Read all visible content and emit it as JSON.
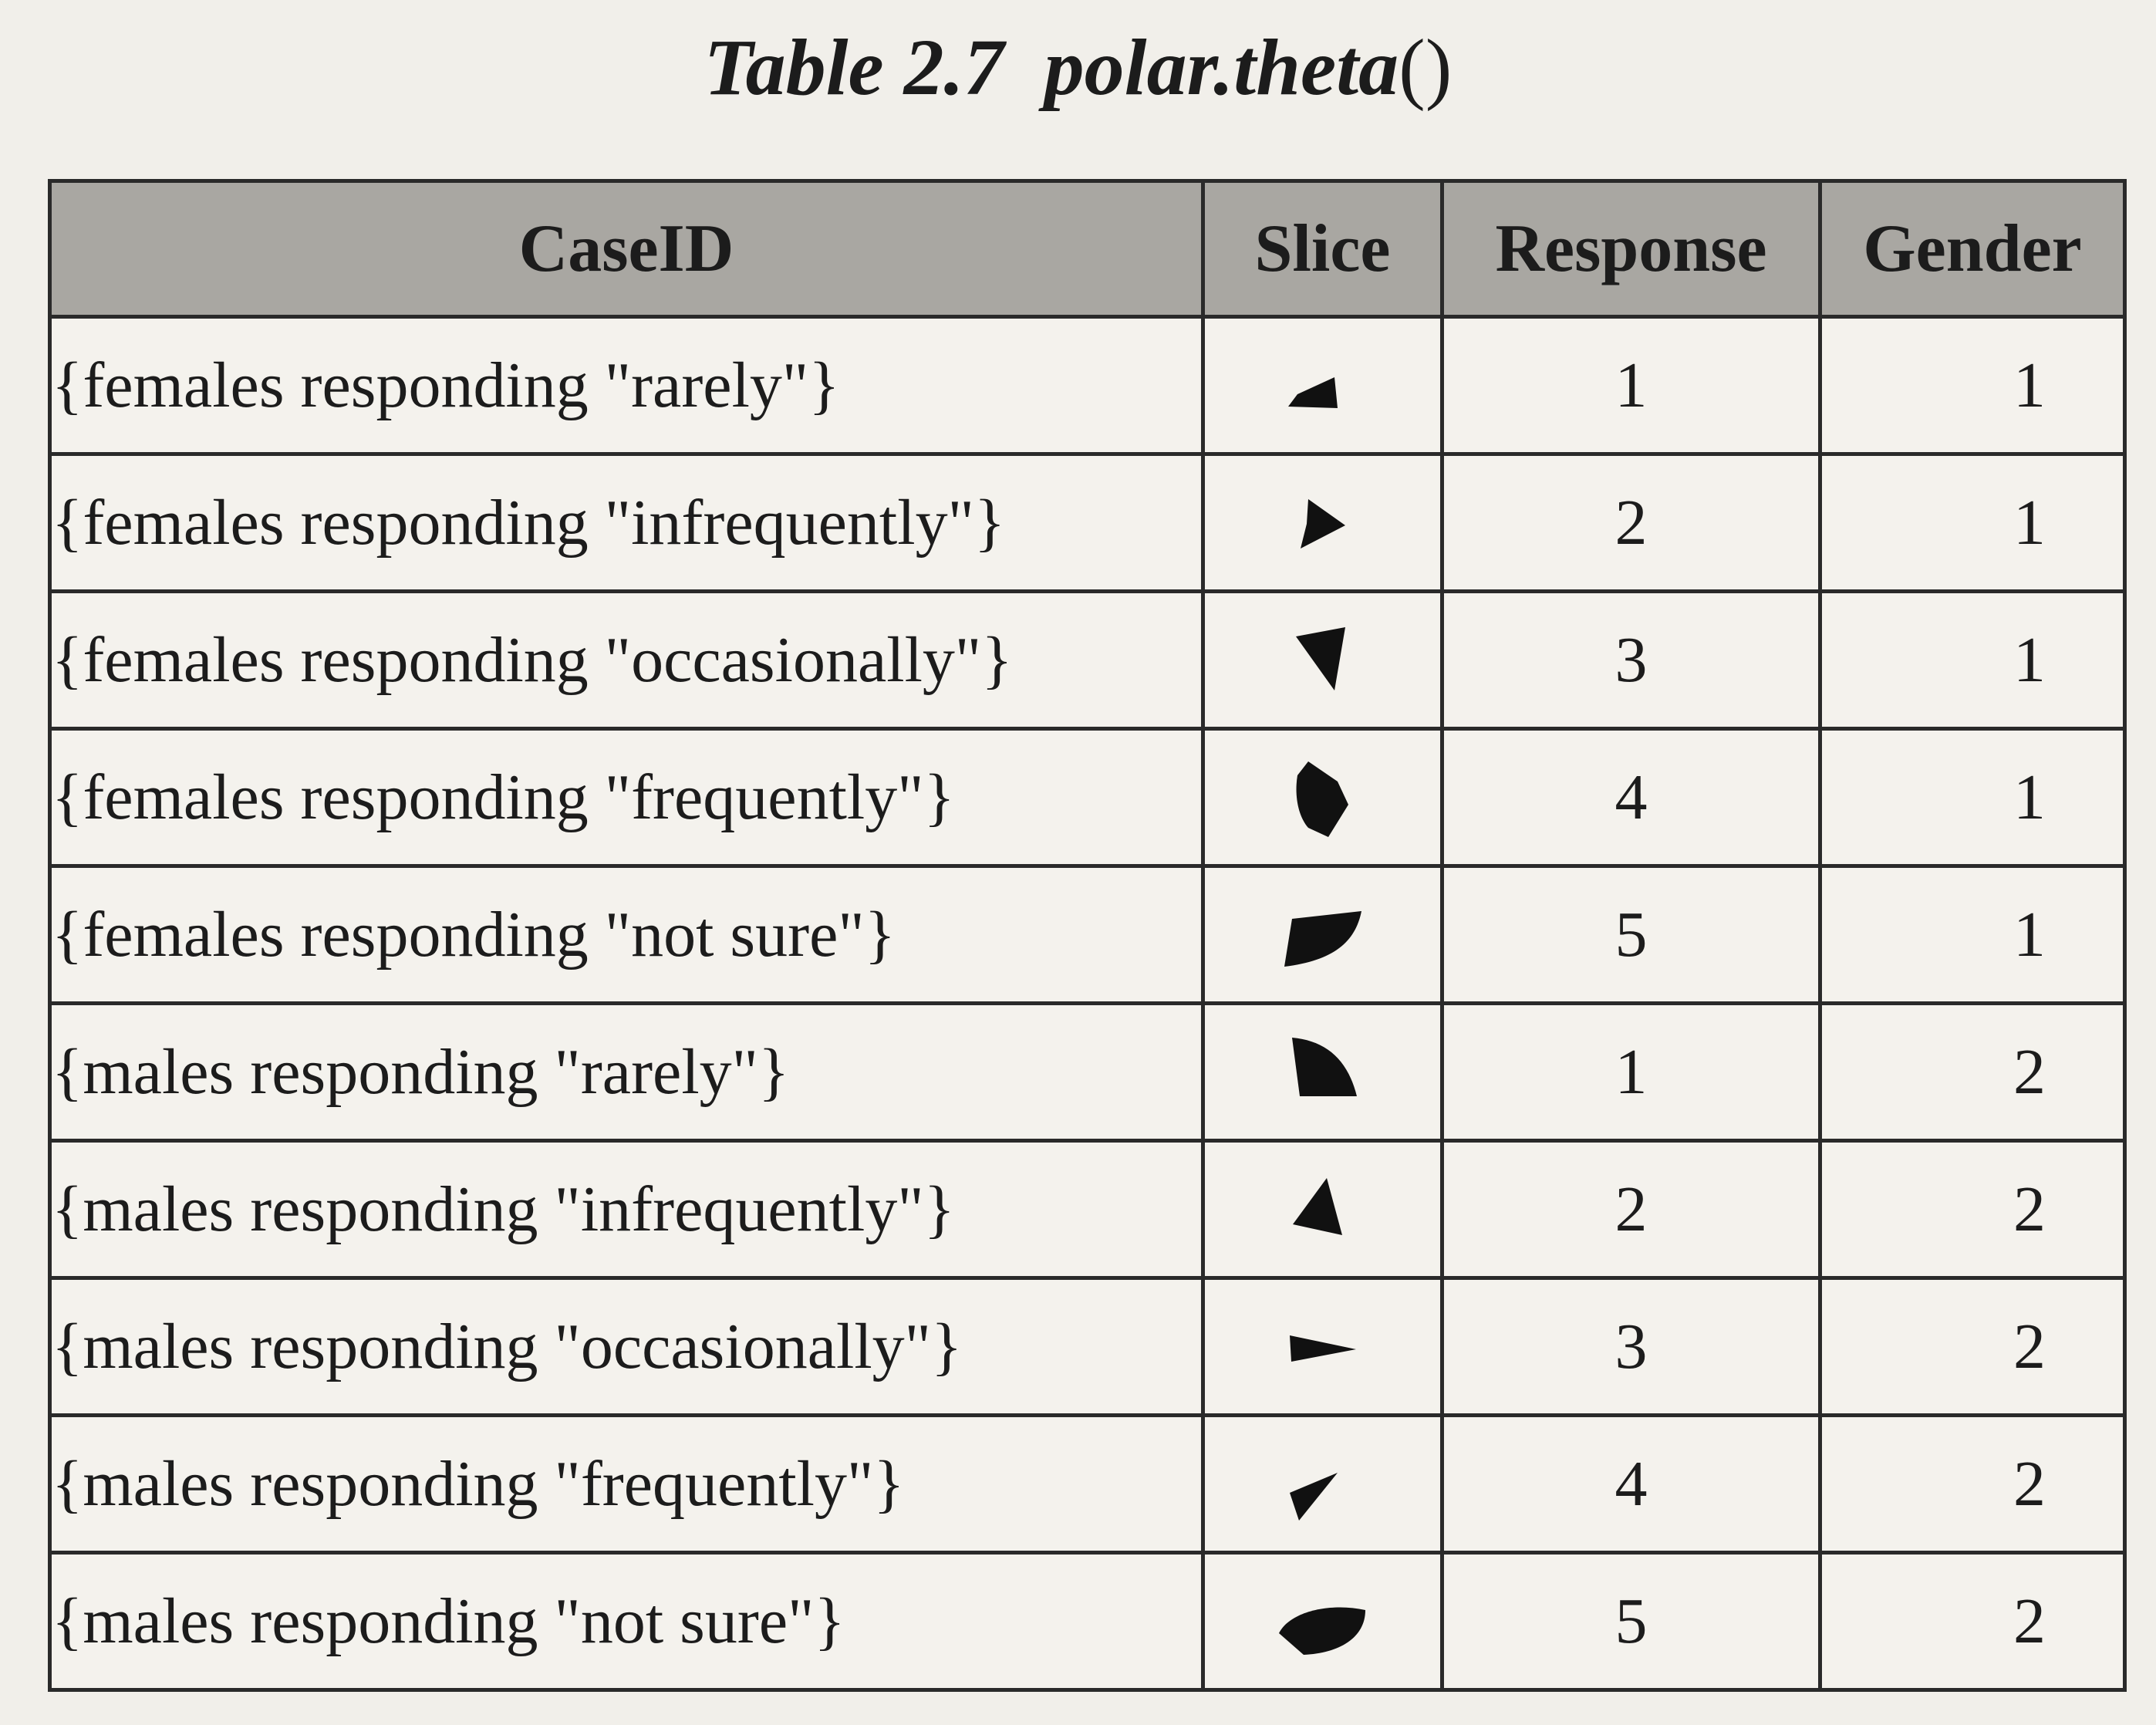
{
  "caption": {
    "label": "Table 2.7",
    "func": "polar.theta",
    "parens": "()"
  },
  "headers": {
    "case_id": "CaseID",
    "slice": "Slice",
    "response": "Response",
    "gender": "Gender"
  },
  "rows": [
    {
      "case_id": "{females responding \"rarely\"}",
      "response": "1",
      "gender": "1",
      "slice_icon": "wedge-slice-icon"
    },
    {
      "case_id": "{females responding \"infrequently\"}",
      "response": "2",
      "gender": "1",
      "slice_icon": "wedge-slice-icon"
    },
    {
      "case_id": "{females responding \"occasionally\"}",
      "response": "3",
      "gender": "1",
      "slice_icon": "wedge-slice-icon"
    },
    {
      "case_id": "{females responding \"frequently\"}",
      "response": "4",
      "gender": "1",
      "slice_icon": "wedge-slice-icon"
    },
    {
      "case_id": "{females responding \"not sure\"}",
      "response": "5",
      "gender": "1",
      "slice_icon": "wedge-slice-icon"
    },
    {
      "case_id": "{males responding \"rarely\"}",
      "response": "1",
      "gender": "2",
      "slice_icon": "wedge-slice-icon"
    },
    {
      "case_id": "{males responding \"infrequently\"}",
      "response": "2",
      "gender": "2",
      "slice_icon": "wedge-slice-icon"
    },
    {
      "case_id": "{males responding \"occasionally\"}",
      "response": "3",
      "gender": "2",
      "slice_icon": "wedge-slice-icon"
    },
    {
      "case_id": "{males responding \"frequently\"}",
      "response": "4",
      "gender": "2",
      "slice_icon": "wedge-slice-icon"
    },
    {
      "case_id": "{males responding \"not sure\"}",
      "response": "5",
      "gender": "2",
      "slice_icon": "wedge-slice-icon"
    }
  ]
}
